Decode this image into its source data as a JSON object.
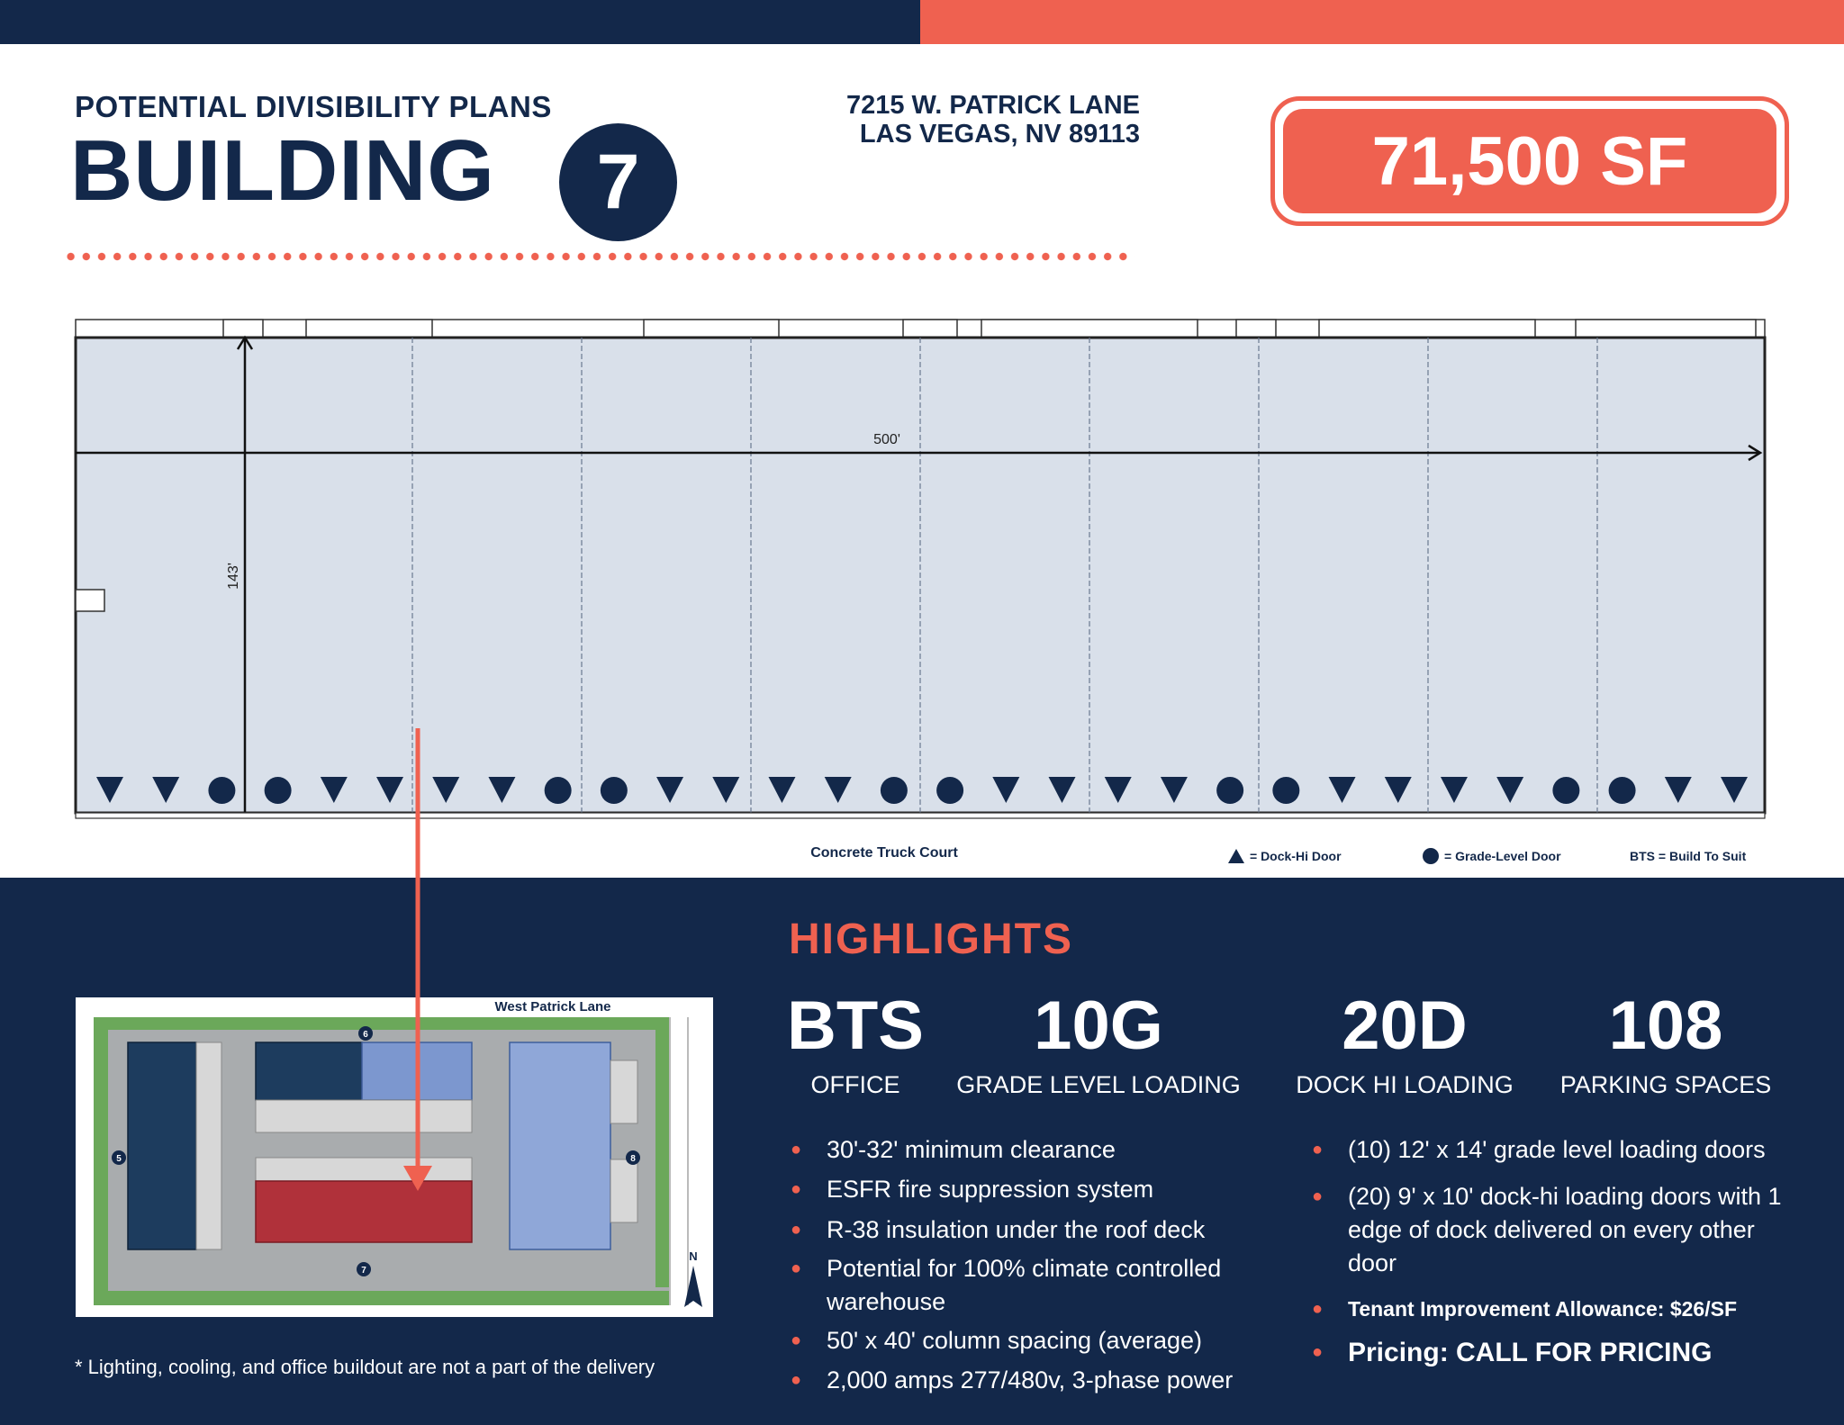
{
  "header": {
    "subtitle": "POTENTIAL DIVISIBILITY PLANS",
    "title": "BUILDING",
    "building_number": "7",
    "address_line1": "7215 W. PATRICK LANE",
    "address_line2": "LAS VEGAS, NV 89113",
    "square_feet": "71,500 SF"
  },
  "plan": {
    "width_label": "500'",
    "depth_label": "143'",
    "truck_court_label": "Concrete Truck Court",
    "legend": {
      "dock_hi": "= Dock-Hi Door",
      "grade_level": "= Grade-Level Door",
      "bts": "BTS = Build To Suit"
    },
    "door_sequence": [
      "D",
      "D",
      "G",
      "G",
      "D",
      "D",
      "D",
      "D",
      "G",
      "G",
      "D",
      "D",
      "D",
      "D",
      "G",
      "G",
      "D",
      "D",
      "D",
      "D",
      "G",
      "G",
      "D",
      "D",
      "D",
      "D",
      "G",
      "G",
      "D",
      "D"
    ]
  },
  "site_map": {
    "street_label": "West Patrick Lane",
    "building_labels": [
      "5",
      "6",
      "7",
      "8"
    ],
    "north_label": "N"
  },
  "highlights": {
    "heading": "HIGHLIGHTS",
    "stats": [
      {
        "value": "BTS",
        "label": "OFFICE"
      },
      {
        "value": "10G",
        "label": "GRADE LEVEL LOADING"
      },
      {
        "value": "20D",
        "label": "DOCK HI LOADING"
      },
      {
        "value": "108",
        "label": "PARKING SPACES"
      }
    ],
    "left_bullets": [
      "30'-32' minimum clearance",
      "ESFR fire suppression system",
      "R-38 insulation under the roof deck",
      "Potential for 100% climate controlled warehouse",
      "50' x 40' column spacing (average)",
      "2,000 amps 277/480v, 3-phase power"
    ],
    "right_bullets": [
      "(10) 12' x 14' grade level loading doors",
      "(20) 9' x 10' dock-hi loading doors with 1 edge of dock delivered on every other door"
    ],
    "tenant_allowance": "Tenant Improvement Allowance: $26/SF",
    "pricing": "Pricing: CALL FOR PRICING"
  },
  "footnote": "* Lighting, cooling, and office buildout are not a part of the delivery",
  "colors": {
    "navy": "#13284a",
    "coral": "#ef6150",
    "floor": "#d9e0ea"
  }
}
